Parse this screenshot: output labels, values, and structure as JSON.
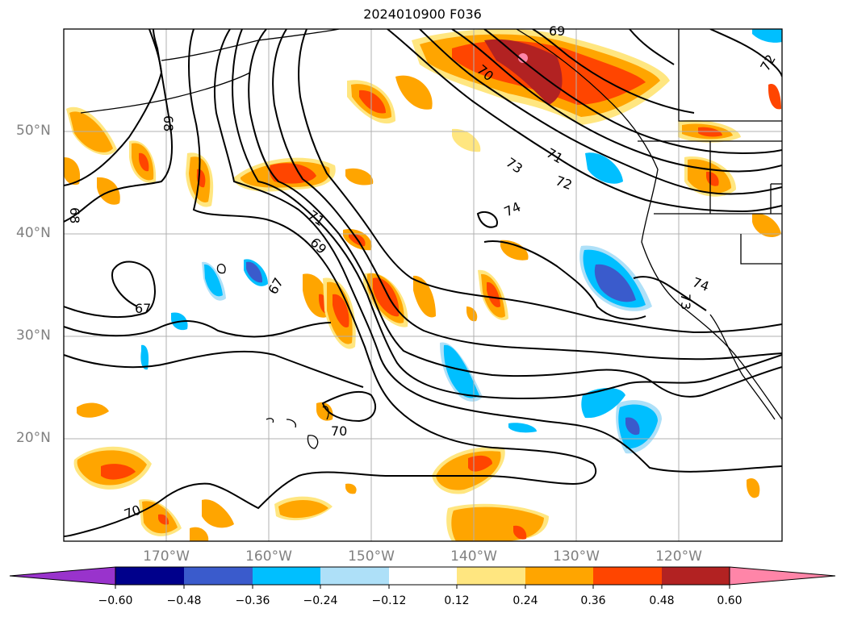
{
  "title": "2024010900 F036",
  "map": {
    "lat_ticks": [
      "50°N",
      "40°N",
      "30°N",
      "20°N"
    ],
    "lon_ticks": [
      "170°W",
      "160°W",
      "150°W",
      "140°W",
      "130°W",
      "120°W"
    ],
    "contour_labels": [
      "68",
      "68",
      "67",
      "67",
      "71",
      "69",
      "70",
      "70",
      "70",
      "73",
      "71",
      "72",
      "74",
      "74",
      "73",
      "72",
      "69"
    ],
    "contour_color": "#000000",
    "grid_color": "#b0b0b0"
  },
  "colorbar": {
    "ticks": [
      "−0.60",
      "−0.48",
      "−0.36",
      "−0.24",
      "−0.12",
      "0.12",
      "0.24",
      "0.36",
      "0.48",
      "0.60"
    ],
    "colors": [
      "#9933cc",
      "#00008b",
      "#3a5bcc",
      "#00bfff",
      "#aee0f8",
      "#ffffff",
      "#ffe680",
      "#ffa500",
      "#ff4500",
      "#b22222",
      "#ff85a8"
    ]
  }
}
